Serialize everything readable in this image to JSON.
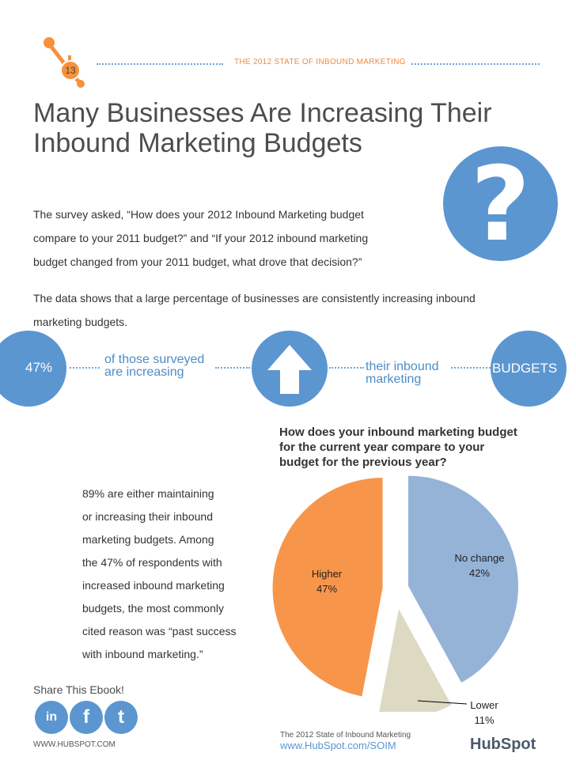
{
  "header": {
    "page_number": "13",
    "title": "THE 2012 STATE OF INBOUND MARKETING"
  },
  "main": {
    "title_line1": "Many Businesses Are Increasing Their",
    "title_line2": "Inbound Marketing Budgets",
    "question_mark": "?",
    "survey_para": [
      "The survey asked, “How does your 2012 Inbound Marketing budget",
      "compare to your 2011 budget?” and “If your 2012 inbound marketing",
      "budget changed from your 2011 budget, what drove that decision?”"
    ],
    "data_para": [
      "The data shows that a large percentage of businesses are consistently increasing inbound",
      "marketing budgets."
    ]
  },
  "stats": {
    "percent": "47%",
    "text1_line1": "of those surveyed",
    "text1_line2": "are increasing",
    "text2_line1": "their inbound",
    "text2_line2": "marketing",
    "budgets": "BUDGETS"
  },
  "chart_question": [
    "How does your inbound marketing budget",
    "for the current year compare to your",
    "budget for the previous year?"
  ],
  "summary": [
    "89% are either maintaining",
    "or increasing their inbound",
    "marketing budgets. Among",
    "the 47% of respondents with",
    "increased inbound marketing",
    "budgets, the most commonly",
    "cited reason was “past success",
    "with inbound marketing.”"
  ],
  "chart_data": {
    "type": "pie",
    "title": "How does your inbound marketing budget for the current year compare to your budget for the previous year?",
    "categories": [
      "Higher",
      "No change",
      "Lower"
    ],
    "values": [
      47,
      42,
      11
    ],
    "labels": [
      "47%",
      "42%",
      "11%"
    ],
    "colors": [
      "#f7964a",
      "#95b3d7",
      "#ddd9c3"
    ]
  },
  "footer": {
    "share_label": "Share This Ebook!",
    "social_icons": [
      "linkedin-icon",
      "facebook-icon",
      "twitter-icon"
    ],
    "social_glyphs": [
      "in",
      "f",
      "t"
    ],
    "website_left": "WWW.HUBSPOT.COM",
    "report_name": "The 2012 State of Inbound Marketing",
    "report_url": "www.HubSpot.com/SOIM",
    "logo": "HubSpot"
  }
}
